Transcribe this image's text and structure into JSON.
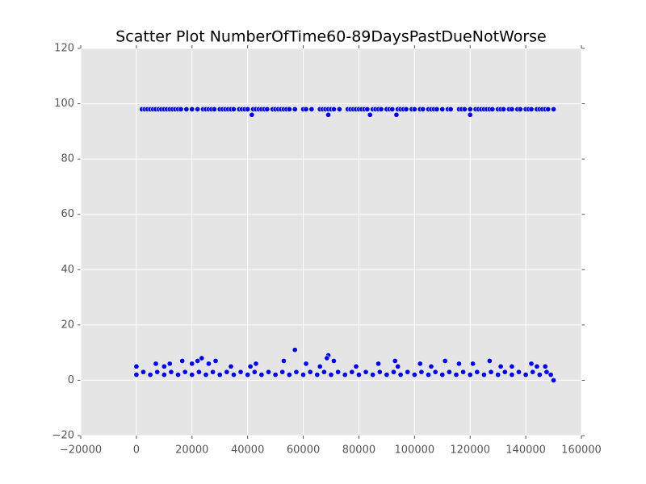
{
  "chart_data": {
    "type": "scatter",
    "title": "Scatter Plot NumberOfTime60-89DaysPastDueNotWorse",
    "color": "#0000ff",
    "background": "#e5e5e5",
    "grid": true,
    "xlim": [
      -20000,
      160000
    ],
    "xticks": [
      {
        "value": -20000,
        "label": "−20000"
      },
      0,
      20000,
      40000,
      60000,
      80000,
      100000,
      120000,
      140000,
      160000
    ],
    "ylim": [
      -20,
      120
    ],
    "yticks": [
      {
        "value": -20,
        "label": "−20"
      },
      0,
      20,
      40,
      60,
      80,
      100,
      120
    ],
    "x": [
      2000,
      3000,
      4000,
      5000,
      6000,
      7000,
      8000,
      9000,
      10000,
      11000,
      12000,
      13000,
      14000,
      15000,
      16000,
      18000,
      20000,
      22000,
      24000,
      25000,
      26000,
      27000,
      28000,
      30000,
      31000,
      32000,
      33000,
      34000,
      35000,
      37000,
      38000,
      39000,
      40000,
      42000,
      43000,
      44000,
      45000,
      46000,
      47000,
      49000,
      50000,
      51000,
      52000,
      53000,
      54000,
      55000,
      57000,
      60000,
      61000,
      63000,
      66000,
      67000,
      68000,
      69000,
      70000,
      71000,
      73000,
      76000,
      77000,
      78000,
      79000,
      80000,
      81000,
      82000,
      83000,
      85000,
      86000,
      87000,
      88000,
      90000,
      91000,
      92000,
      94000,
      95000,
      96000,
      97000,
      99000,
      100000,
      102000,
      103000,
      105000,
      106000,
      107000,
      108000,
      110000,
      112000,
      113000,
      116000,
      117000,
      118000,
      120000,
      122000,
      123000,
      124000,
      125000,
      126000,
      127000,
      128000,
      130000,
      131000,
      132000,
      134000,
      135000,
      137000,
      138000,
      140000,
      141000,
      142000,
      144000,
      145000,
      146000,
      147000,
      148000,
      150000,
      41500,
      69000,
      84000,
      93500,
      120000,
      0,
      7000,
      10000,
      12000,
      16500,
      20000,
      22000,
      23500,
      26000,
      28500,
      34000,
      41000,
      43000,
      53000,
      57000,
      61000,
      66000,
      69000,
      68500,
      71000,
      79000,
      87000,
      93000,
      94000,
      102000,
      106000,
      111000,
      116000,
      121000,
      127000,
      131000,
      135000,
      142000,
      144000,
      147000,
      150000,
      149000,
      0,
      2500,
      5000,
      7500,
      10000,
      12500,
      15000,
      17500,
      20000,
      22500,
      25000,
      27500,
      30000,
      32500,
      35000,
      37500,
      40000,
      42500,
      45000,
      47500,
      50000,
      52500,
      55000,
      57500,
      60000,
      62500,
      65000,
      67500,
      70000,
      72500,
      75000,
      77500,
      80000,
      82500,
      85000,
      87500,
      90000,
      92500,
      95000,
      97500,
      100000,
      102500,
      105000,
      107500,
      110000,
      112500,
      115000,
      117500,
      120000,
      122500,
      125000,
      127500,
      130000,
      132500,
      135000,
      137500,
      140000,
      142500,
      145000,
      147500
    ],
    "y": [
      98,
      98,
      98,
      98,
      98,
      98,
      98,
      98,
      98,
      98,
      98,
      98,
      98,
      98,
      98,
      98,
      98,
      98,
      98,
      98,
      98,
      98,
      98,
      98,
      98,
      98,
      98,
      98,
      98,
      98,
      98,
      98,
      98,
      98,
      98,
      98,
      98,
      98,
      98,
      98,
      98,
      98,
      98,
      98,
      98,
      98,
      98,
      98,
      98,
      98,
      98,
      98,
      98,
      98,
      98,
      98,
      98,
      98,
      98,
      98,
      98,
      98,
      98,
      98,
      98,
      98,
      98,
      98,
      98,
      98,
      98,
      98,
      98,
      98,
      98,
      98,
      98,
      98,
      98,
      98,
      98,
      98,
      98,
      98,
      98,
      98,
      98,
      98,
      98,
      98,
      98,
      98,
      98,
      98,
      98,
      98,
      98,
      98,
      98,
      98,
      98,
      98,
      98,
      98,
      98,
      98,
      98,
      98,
      98,
      98,
      98,
      98,
      98,
      98,
      96,
      96,
      96,
      96,
      96,
      5,
      6,
      5,
      6,
      7,
      6,
      7,
      8,
      6,
      7,
      5,
      5,
      6,
      7,
      11,
      6,
      5,
      9,
      8,
      7,
      5,
      6,
      7,
      5,
      6,
      5,
      7,
      6,
      6,
      7,
      5,
      5,
      6,
      5,
      5,
      0,
      2,
      2,
      3,
      2,
      3,
      2,
      3,
      2,
      3,
      2,
      3,
      2,
      3,
      2,
      3,
      2,
      3,
      2,
      3,
      2,
      3,
      2,
      3,
      2,
      3,
      2,
      3,
      2,
      3,
      2,
      3,
      2,
      3,
      2,
      3,
      2,
      3,
      2,
      3,
      2,
      3,
      2,
      3,
      2,
      3,
      2,
      3,
      2,
      3,
      2,
      3,
      2,
      3,
      2,
      3,
      2,
      3,
      2,
      3,
      2,
      3
    ]
  }
}
